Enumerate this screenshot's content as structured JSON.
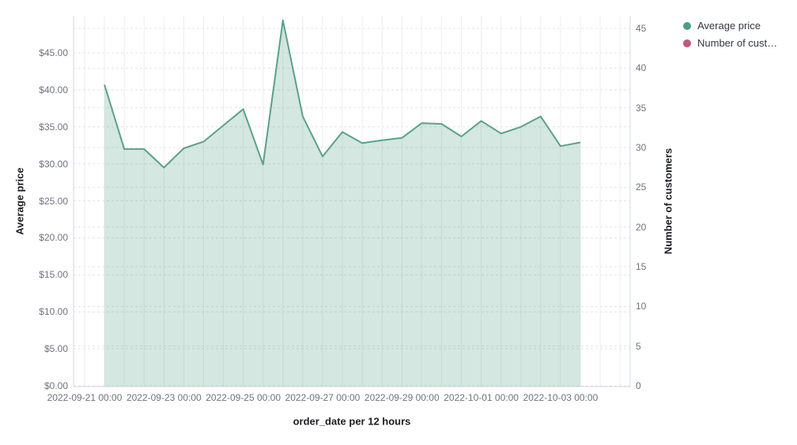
{
  "chart_data": {
    "type": "area",
    "title": "",
    "x_label": "order_date per 12 hours",
    "interval": "12 hours",
    "grid": "dashed horizontal for both y axes, solid light vertical every 12 hours",
    "legend_position": "top-right",
    "y_left": {
      "label": "Average price",
      "tick_values": [
        0,
        5,
        10,
        15,
        20,
        25,
        30,
        35,
        40,
        45
      ],
      "ticks": [
        "$0.00",
        "$5.00",
        "$10.00",
        "$15.00",
        "$20.00",
        "$25.00",
        "$30.00",
        "$35.00",
        "$40.00",
        "$45.00"
      ],
      "range": [
        0,
        50
      ]
    },
    "y_right": {
      "label": "Number of customers",
      "tick_values": [
        0,
        5,
        10,
        15,
        20,
        25,
        30,
        35,
        40,
        45
      ],
      "ticks": [
        "0",
        "5",
        "10",
        "15",
        "20",
        "25",
        "30",
        "35",
        "40",
        "45"
      ],
      "range": [
        0,
        46.6
      ]
    },
    "x_tick_labels": [
      "2022-09-21 00:00",
      "2022-09-23 00:00",
      "2022-09-25 00:00",
      "2022-09-27 00:00",
      "2022-09-29 00:00",
      "2022-10-01 00:00",
      "2022-10-03 00:00"
    ],
    "x_tick_slots": [
      0,
      4,
      8,
      12,
      16,
      20,
      24
    ],
    "legend": [
      {
        "label": "Average price",
        "color": "#4f9d82"
      },
      {
        "label": "Number of cust…",
        "color": "#c2567c"
      }
    ],
    "series": [
      {
        "name": "Average price",
        "axis": "left",
        "line_color": "#5aa287",
        "fill_color": "rgba(90, 162, 135, 0.26)",
        "x": [
          "2022-09-21 12:00",
          "2022-09-22 00:00",
          "2022-09-22 12:00",
          "2022-09-23 00:00",
          "2022-09-23 12:00",
          "2022-09-24 00:00",
          "2022-09-24 12:00",
          "2022-09-25 00:00",
          "2022-09-25 12:00",
          "2022-09-26 00:00",
          "2022-09-26 12:00",
          "2022-09-27 00:00",
          "2022-09-27 12:00",
          "2022-09-28 00:00",
          "2022-09-28 12:00",
          "2022-09-29 00:00",
          "2022-09-29 12:00",
          "2022-09-30 00:00",
          "2022-09-30 12:00",
          "2022-10-01 00:00",
          "2022-10-01 12:00",
          "2022-10-02 00:00",
          "2022-10-02 12:00",
          "2022-10-03 00:00",
          "2022-10-03 12:00"
        ],
        "values": [
          40.7,
          32.0,
          32.0,
          29.5,
          32.1,
          33.0,
          35.2,
          37.4,
          29.9,
          49.4,
          36.4,
          31.0,
          34.3,
          32.8,
          33.2,
          33.5,
          35.5,
          35.4,
          33.7,
          35.8,
          34.1,
          35.0,
          36.4,
          32.4,
          32.9
        ]
      },
      {
        "name": "Number of customers",
        "axis": "right",
        "legend_label_truncated": "Number of cust…",
        "color": "#c2567c",
        "values": []
      }
    ]
  }
}
